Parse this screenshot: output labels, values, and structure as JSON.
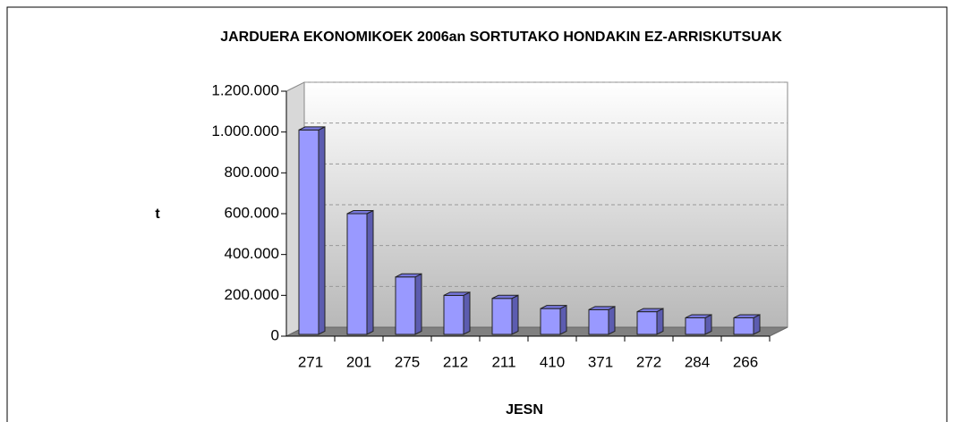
{
  "chart_data": {
    "type": "bar3d",
    "title": "JARDUERA EKONOMIKOEK 2006an SORTUTAKO HONDAKIN EZ-ARRISKUTSUAK",
    "x_label": "JESN",
    "y_label": "t",
    "categories": [
      "271",
      "201",
      "275",
      "212",
      "211",
      "410",
      "371",
      "272",
      "284",
      "266"
    ],
    "values": [
      1010000,
      600000,
      290000,
      200000,
      185000,
      135000,
      130000,
      120000,
      90000,
      90000
    ],
    "color": "#9999ff",
    "ylim": [
      0,
      1200000
    ],
    "yticks": [
      0,
      {
        "value": 200000,
        "label": "200.000"
      },
      {
        "value": 400000,
        "label": "400.000"
      },
      {
        "value": 600000,
        "label": "600.000"
      },
      {
        "value": 800000,
        "label": "800.000"
      },
      {
        "value": 1000000,
        "label": "1.000.000"
      },
      {
        "value": 1200000,
        "label": "1.200.000"
      }
    ],
    "grid": true
  }
}
